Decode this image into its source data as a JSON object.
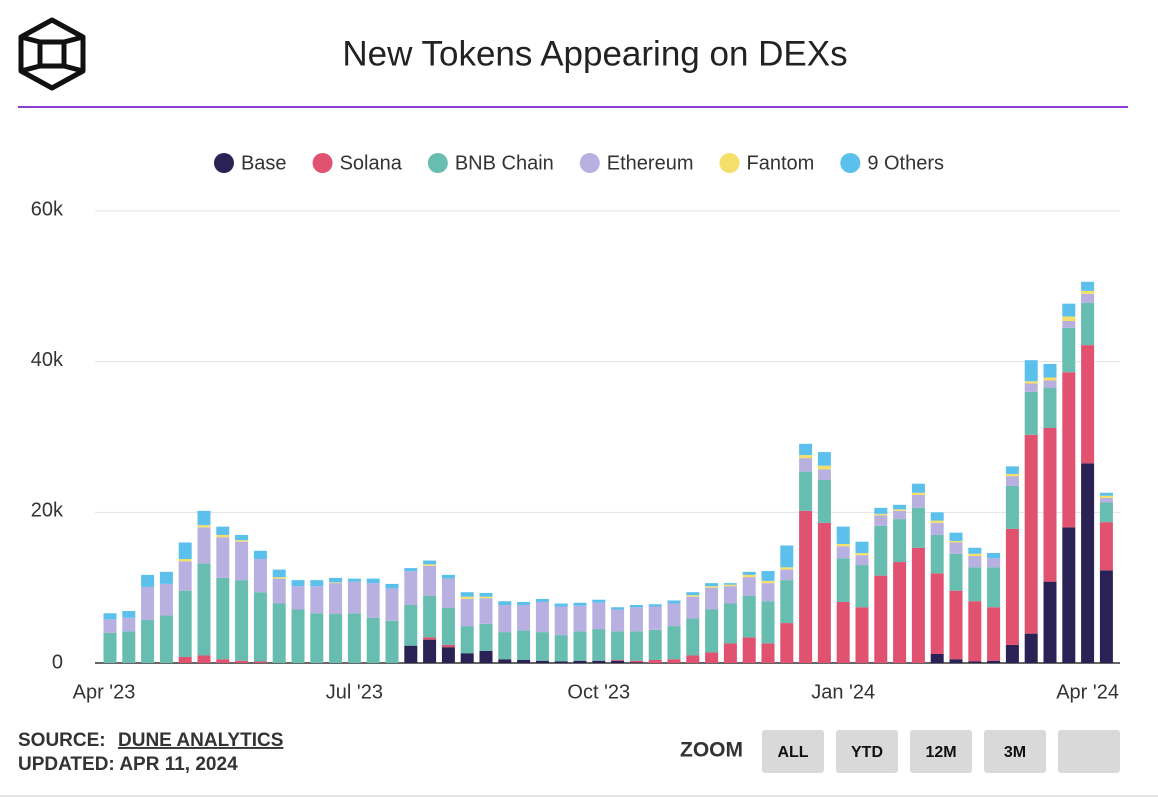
{
  "chart_data": {
    "type": "stacked_bar",
    "title": "New Tokens Appearing on DEXs",
    "categories": [
      "Apr '23",
      null,
      null,
      null,
      null,
      null,
      null,
      null,
      null,
      null,
      null,
      null,
      null,
      "Jul '23",
      null,
      null,
      null,
      null,
      null,
      null,
      null,
      null,
      null,
      null,
      null,
      null,
      "Oct '23",
      null,
      null,
      null,
      null,
      null,
      null,
      null,
      null,
      null,
      null,
      null,
      null,
      "Jan '24",
      null,
      null,
      null,
      null,
      null,
      null,
      null,
      null,
      null,
      null,
      null,
      null,
      "Apr '24",
      null
    ],
    "series": [
      {
        "name": "Base",
        "color": "#2a2254",
        "values": [
          0,
          0,
          0,
          0,
          0,
          0,
          0,
          0,
          0,
          0,
          0,
          0,
          0,
          0,
          0,
          0,
          2300,
          3100,
          2100,
          1300,
          1600,
          500,
          400,
          300,
          200,
          300,
          300,
          300,
          100,
          0,
          0,
          0,
          0,
          0,
          0,
          0,
          0,
          0,
          0,
          0,
          0,
          0,
          0,
          0,
          1200,
          500,
          200,
          300,
          2400,
          3900,
          10800,
          18000,
          26500,
          12300
        ]
      },
      {
        "name": "Solana",
        "color": "#e05270",
        "values": [
          0,
          0,
          0,
          0,
          800,
          1000,
          500,
          300,
          200,
          0,
          0,
          0,
          0,
          0,
          0,
          0,
          0,
          300,
          300,
          0,
          0,
          0,
          0,
          0,
          0,
          0,
          0,
          100,
          200,
          400,
          500,
          1000,
          1400,
          2600,
          3400,
          2600,
          5300,
          20200,
          18600,
          8100,
          7400,
          11600,
          13400,
          15300,
          10700,
          9100,
          8000,
          7100,
          15400,
          26400,
          20400,
          20600,
          15700,
          6400
        ]
      },
      {
        "name": "BNB Chain",
        "color": "#67bdb0",
        "values": [
          4000,
          4200,
          5700,
          6300,
          8800,
          12200,
          10800,
          10700,
          9200,
          7900,
          7100,
          6600,
          6500,
          6600,
          6000,
          5600,
          5400,
          5500,
          4900,
          3600,
          3600,
          3600,
          3900,
          3800,
          3500,
          3900,
          4200,
          3800,
          3900,
          4000,
          4400,
          4900,
          5700,
          5300,
          5500,
          5600,
          5700,
          5200,
          5700,
          5800,
          5600,
          6600,
          5700,
          5300,
          5100,
          4900,
          4500,
          5300,
          5700,
          5700,
          5300,
          5900,
          5600,
          2600
        ]
      },
      {
        "name": "Ethereum",
        "color": "#b8b0e0",
        "values": [
          1800,
          1800,
          4400,
          4200,
          3900,
          4800,
          5400,
          5100,
          4400,
          3300,
          3100,
          3600,
          4100,
          4200,
          4600,
          4300,
          4500,
          4000,
          3900,
          3600,
          3400,
          3600,
          3400,
          4000,
          3800,
          3400,
          3500,
          2900,
          3200,
          3100,
          3000,
          2900,
          2900,
          2300,
          2500,
          2400,
          1400,
          1800,
          1400,
          1600,
          1300,
          1400,
          1100,
          1700,
          1600,
          1500,
          1500,
          1200,
          1300,
          1100,
          1000,
          900,
          1200,
          600
        ]
      },
      {
        "name": "Fantom",
        "color": "#f5df6b",
        "values": [
          0,
          0,
          0,
          0,
          300,
          300,
          300,
          200,
          0,
          200,
          0,
          0,
          100,
          0,
          0,
          0,
          0,
          200,
          0,
          300,
          200,
          0,
          0,
          0,
          0,
          0,
          0,
          0,
          0,
          0,
          0,
          200,
          200,
          200,
          300,
          300,
          300,
          400,
          500,
          300,
          300,
          200,
          200,
          300,
          300,
          200,
          300,
          0,
          300,
          300,
          400,
          600,
          400,
          300
        ]
      },
      {
        "name": "9 Others",
        "color": "#5bc0eb",
        "values": [
          800,
          900,
          1600,
          1600,
          2200,
          1900,
          1100,
          700,
          1100,
          1000,
          800,
          800,
          600,
          400,
          600,
          600,
          400,
          500,
          500,
          600,
          500,
          500,
          400,
          400,
          400,
          400,
          400,
          300,
          300,
          300,
          400,
          400,
          400,
          200,
          400,
          1300,
          2900,
          1500,
          1800,
          2300,
          1500,
          800,
          600,
          1200,
          1100,
          1100,
          800,
          700,
          1000,
          2800,
          1800,
          1700,
          1200,
          400
        ]
      }
    ],
    "ylim": [
      0,
      60000
    ],
    "yticks": [
      0,
      {
        "value": 20000,
        "label": "20k"
      },
      {
        "value": 40000,
        "label": "40k"
      },
      {
        "value": 60000,
        "label": "60k"
      }
    ],
    "grid": true,
    "legend": "top"
  },
  "footer": {
    "source_label": "SOURCE:",
    "source": "DUNE ANALYTICS",
    "updated": "UPDATED: APR 11, 2024"
  },
  "zoom": {
    "label": "ZOOM",
    "buttons": [
      "ALL",
      "YTD",
      "12M",
      "3M"
    ]
  }
}
